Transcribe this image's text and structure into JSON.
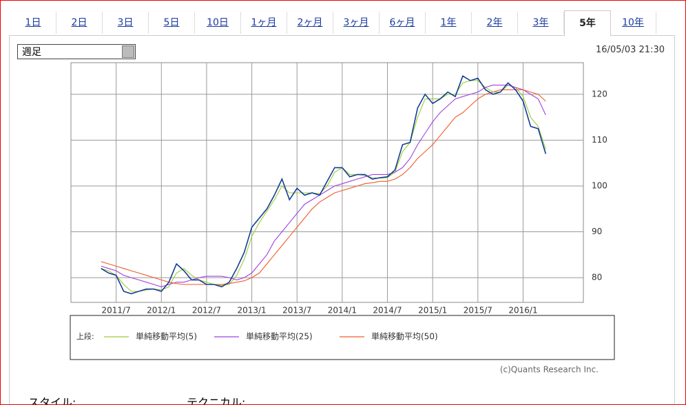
{
  "tabs": [
    "1日",
    "2日",
    "3日",
    "5日",
    "10日",
    "1ヶ月",
    "2ヶ月",
    "3ヶ月",
    "6ヶ月",
    "1年",
    "2年",
    "3年",
    "5年",
    "10年"
  ],
  "select": "週足",
  "timestamp": "16/05/03 21:30",
  "chart_data": {
    "type": "line",
    "categories": [
      null,
      null,
      null,
      null,
      null,
      null,
      "2011/7",
      null,
      null,
      null,
      null,
      null,
      "2012/1",
      null,
      null,
      null,
      null,
      null,
      "2012/7",
      null,
      null,
      null,
      null,
      null,
      "2013/1",
      null,
      null,
      null,
      null,
      null,
      "2013/7",
      null,
      null,
      null,
      null,
      null,
      "2014/1",
      null,
      null,
      null,
      null,
      null,
      "2014/7",
      null,
      null,
      null,
      null,
      null,
      "2015/1",
      null,
      null,
      null,
      null,
      null,
      "2015/7",
      null,
      null,
      null,
      null,
      null,
      "2016/1",
      null,
      null,
      null,
      null,
      null,
      null,
      null
    ],
    "ylim": [
      74.6,
      126.9
    ],
    "yticks": [
      80,
      90,
      100,
      110,
      120
    ],
    "grid": true,
    "legend_prefix": "上段:",
    "series": [
      {
        "color": "#123c98",
        "values": [
          null,
          null,
          null,
          null,
          82,
          81,
          80.5,
          77,
          76.5,
          77,
          77.5,
          77.5,
          77,
          79,
          83,
          81.5,
          79.5,
          79.5,
          78.5,
          78.5,
          78,
          79,
          82,
          85.5,
          91,
          93,
          95,
          98,
          101.5,
          97,
          99.5,
          98,
          98.5,
          98,
          101,
          104,
          104,
          102,
          102.5,
          102.5,
          101.5,
          101.8,
          102,
          103.5,
          109,
          109.5,
          117,
          120,
          118,
          119,
          120.5,
          119.5,
          124,
          123,
          123.5,
          121,
          120,
          120.5,
          122.5,
          121,
          118.5,
          113,
          112.5,
          107,
          null,
          null,
          null,
          null
        ]
      },
      {
        "name": "単純移動平均(5)",
        "color": "#9acd32",
        "values": [
          null,
          null,
          null,
          null,
          82,
          81.5,
          80.5,
          78.5,
          77,
          77,
          77.3,
          77.5,
          77.3,
          78,
          81,
          82,
          80.5,
          79.5,
          79,
          78.5,
          78.3,
          78.5,
          80.5,
          84,
          89,
          92,
          94.5,
          97,
          100,
          98.5,
          98.5,
          98.5,
          98.5,
          98.3,
          100,
          103,
          104,
          102.5,
          102.5,
          102.3,
          101.8,
          101.7,
          101.8,
          103,
          107.5,
          109.5,
          115,
          119,
          119,
          119,
          120,
          120,
          122.5,
          123,
          123,
          121.5,
          120.5,
          120.5,
          122,
          121.5,
          119.5,
          115,
          113,
          108,
          null,
          null,
          null,
          null
        ]
      },
      {
        "name": "単純移動平均(25)",
        "color": "#a040e0",
        "values": [
          null,
          null,
          null,
          null,
          82.5,
          82,
          81.5,
          80.5,
          80,
          79.5,
          79,
          78.5,
          78,
          78.5,
          79,
          79,
          79.5,
          80,
          80.3,
          80.3,
          80.3,
          80,
          79.5,
          80,
          81,
          83,
          85,
          88,
          90,
          92,
          94,
          96,
          97,
          98,
          99,
          100,
          100.5,
          101,
          101.5,
          102,
          102.5,
          102.5,
          102.5,
          103,
          104,
          106,
          109,
          111.5,
          114,
          116,
          117.5,
          119,
          119.5,
          120,
          120.5,
          121.5,
          122,
          122,
          122,
          121.5,
          121,
          120,
          119,
          115.5,
          null,
          null,
          null,
          null
        ]
      },
      {
        "name": "単純移動平均(50)",
        "color": "#f05a28",
        "values": [
          null,
          null,
          null,
          null,
          83.5,
          83,
          82.5,
          82,
          81.5,
          81,
          80.5,
          80,
          79.5,
          79,
          78.7,
          78.5,
          78.5,
          78.5,
          78.5,
          78.5,
          78.5,
          78.7,
          79,
          79.3,
          80,
          81,
          83,
          85,
          87,
          89,
          91,
          93,
          95,
          96.5,
          97.5,
          98.5,
          99,
          99.5,
          100,
          100.5,
          100.7,
          101,
          101,
          101.5,
          102.5,
          104,
          106,
          107.5,
          109,
          111,
          113,
          115,
          116,
          117.5,
          119,
          120,
          120.5,
          121,
          121,
          121,
          121,
          120.5,
          120,
          118.5,
          null,
          null,
          null,
          null
        ]
      }
    ]
  },
  "copyright": "(c)Quants Research Inc.",
  "footer": [
    "スタイル:",
    "テクニカル:"
  ]
}
